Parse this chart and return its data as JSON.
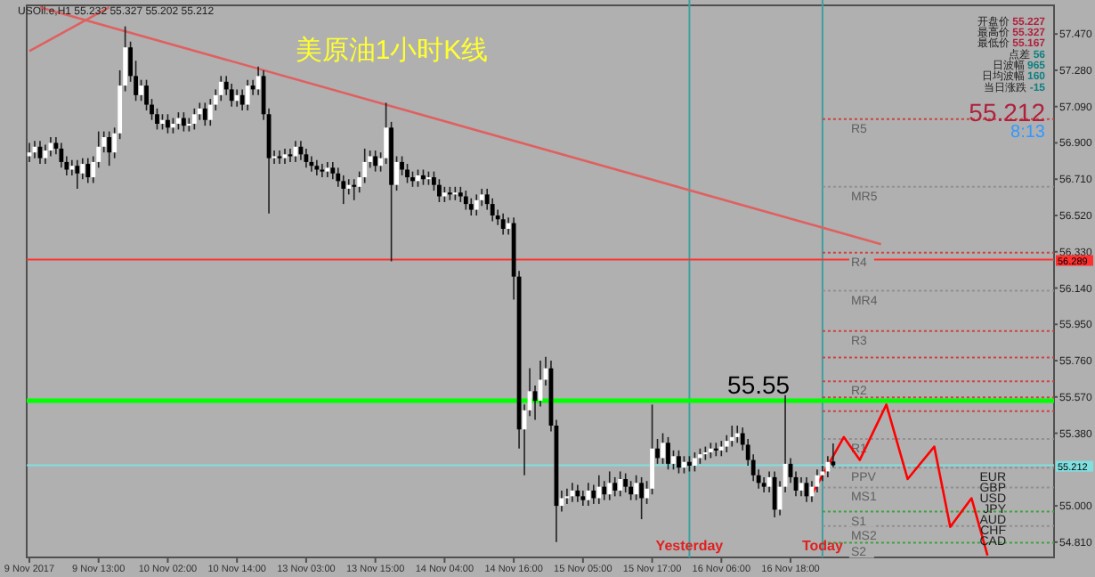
{
  "chart_data": {
    "type": "candlestick",
    "title": "美原油1小时K线",
    "categories": [
      "9 Nov 2017",
      null,
      null,
      null,
      null,
      null,
      null,
      null,
      null,
      null,
      null,
      null,
      null,
      "9 Nov 13:00",
      null,
      null,
      null,
      null,
      null,
      null,
      null,
      null,
      null,
      null,
      null,
      null,
      "10 Nov 02:00",
      null,
      null,
      null,
      null,
      null,
      null,
      null,
      null,
      null,
      null,
      null,
      null,
      "10 Nov 14:00",
      null,
      null,
      null,
      null,
      null,
      null,
      null,
      null,
      null,
      null,
      null,
      null,
      "13 Nov 03:00",
      null,
      null,
      null,
      null,
      null,
      null,
      null,
      null,
      null,
      null,
      null,
      null,
      "13 Nov 15:00",
      null,
      null,
      null,
      null,
      null,
      null,
      null,
      null,
      null,
      null,
      null,
      null,
      "14 Nov 04:00",
      null,
      null,
      null,
      null,
      null,
      null,
      null,
      null,
      null,
      null,
      null,
      null,
      "14 Nov 16:00",
      null,
      null,
      null,
      null,
      null,
      null,
      null,
      null,
      null,
      null,
      null,
      null,
      "15 Nov 05:00",
      null,
      null,
      null,
      null,
      null,
      null,
      null,
      null,
      null,
      null,
      null,
      null,
      "15 Nov 17:00",
      null,
      null,
      null,
      null,
      null,
      null,
      null,
      null,
      null,
      null,
      null,
      null,
      "16 Nov 06:00",
      null,
      null,
      null,
      null,
      null,
      null,
      null,
      null,
      null,
      null,
      null,
      null,
      "16 Nov 18:00",
      null,
      null,
      null,
      null,
      null,
      null,
      null,
      null,
      null,
      null,
      null,
      null,
      null,
      null,
      null,
      null,
      null,
      null,
      null,
      null,
      null,
      null,
      null,
      null,
      null,
      null,
      null,
      null,
      null,
      null,
      null,
      null,
      null,
      null,
      null,
      null,
      null,
      null,
      null,
      null,
      null,
      null,
      null,
      null,
      null,
      null,
      null,
      null,
      null
    ],
    "ohlc": [
      [
        56.83,
        56.9,
        56.8,
        56.85
      ],
      [
        56.85,
        56.91,
        56.82,
        56.88
      ],
      [
        56.88,
        56.91,
        56.79,
        56.82
      ],
      [
        56.82,
        56.89,
        56.79,
        56.86
      ],
      [
        56.86,
        56.93,
        56.83,
        56.9
      ],
      [
        56.9,
        56.93,
        56.84,
        56.87
      ],
      [
        56.87,
        56.9,
        56.77,
        56.8
      ],
      [
        56.8,
        56.83,
        56.73,
        56.76
      ],
      [
        56.76,
        56.81,
        56.73,
        56.78
      ],
      [
        56.78,
        56.81,
        56.66,
        56.74
      ],
      [
        56.74,
        56.82,
        56.71,
        56.79
      ],
      [
        56.79,
        56.82,
        56.69,
        56.72
      ],
      [
        56.72,
        56.83,
        56.69,
        56.8
      ],
      [
        56.8,
        56.96,
        56.77,
        56.88
      ],
      [
        56.88,
        56.96,
        56.85,
        56.93
      ],
      [
        56.93,
        56.96,
        56.78,
        56.85
      ],
      [
        56.85,
        56.98,
        56.82,
        56.95
      ],
      [
        56.95,
        57.28,
        56.92,
        57.2
      ],
      [
        57.2,
        57.51,
        57.17,
        57.4
      ],
      [
        57.4,
        57.43,
        57.22,
        57.25
      ],
      [
        57.25,
        57.33,
        57.12,
        57.15
      ],
      [
        57.15,
        57.23,
        57.12,
        57.2
      ],
      [
        57.2,
        57.23,
        57.07,
        57.1
      ],
      [
        57.1,
        57.13,
        57.02,
        57.05
      ],
      [
        57.05,
        57.08,
        56.97,
        57.0
      ],
      [
        57.0,
        57.05,
        56.97,
        57.02
      ],
      [
        57.02,
        57.05,
        56.95,
        56.98
      ],
      [
        56.98,
        57.03,
        56.95,
        57.0
      ],
      [
        57.0,
        57.06,
        56.97,
        57.03
      ],
      [
        57.03,
        57.06,
        56.96,
        56.99
      ],
      [
        56.99,
        57.03,
        56.96,
        57.0
      ],
      [
        57.0,
        57.08,
        56.97,
        57.05
      ],
      [
        57.05,
        57.11,
        57.02,
        57.08
      ],
      [
        57.08,
        57.11,
        56.99,
        57.02
      ],
      [
        57.02,
        57.13,
        56.99,
        57.1
      ],
      [
        57.1,
        57.18,
        57.07,
        57.15
      ],
      [
        57.15,
        57.25,
        57.12,
        57.22
      ],
      [
        57.22,
        57.25,
        57.15,
        57.18
      ],
      [
        57.18,
        57.21,
        57.09,
        57.12
      ],
      [
        57.12,
        57.18,
        57.09,
        57.15
      ],
      [
        57.15,
        57.18,
        57.07,
        57.1
      ],
      [
        57.1,
        57.23,
        57.07,
        57.2
      ],
      [
        57.2,
        57.23,
        57.15,
        57.18
      ],
      [
        57.18,
        57.3,
        57.15,
        57.25
      ],
      [
        57.25,
        57.28,
        57.02,
        57.05
      ],
      [
        57.05,
        57.08,
        56.53,
        56.82
      ],
      [
        56.82,
        56.86,
        56.79,
        56.83
      ],
      [
        56.83,
        56.86,
        56.79,
        56.82
      ],
      [
        56.82,
        56.87,
        56.79,
        56.84
      ],
      [
        56.84,
        56.87,
        56.8,
        56.83
      ],
      [
        56.83,
        56.91,
        56.8,
        56.88
      ],
      [
        56.88,
        56.91,
        56.81,
        56.84
      ],
      [
        56.84,
        56.87,
        56.77,
        56.8
      ],
      [
        56.8,
        56.83,
        56.75,
        56.78
      ],
      [
        56.78,
        56.81,
        56.73,
        56.76
      ],
      [
        56.76,
        56.79,
        56.72,
        56.75
      ],
      [
        56.75,
        56.8,
        56.72,
        56.77
      ],
      [
        56.77,
        56.8,
        56.71,
        56.74
      ],
      [
        56.74,
        56.77,
        56.67,
        56.7
      ],
      [
        56.7,
        56.73,
        56.58,
        56.66
      ],
      [
        56.66,
        56.71,
        56.63,
        56.68
      ],
      [
        56.68,
        56.71,
        56.6,
        56.67
      ],
      [
        56.67,
        56.75,
        56.64,
        56.72
      ],
      [
        56.72,
        56.87,
        56.69,
        56.8
      ],
      [
        56.8,
        56.86,
        56.77,
        56.83
      ],
      [
        56.83,
        56.86,
        56.75,
        56.78
      ],
      [
        56.78,
        56.85,
        56.75,
        56.82
      ],
      [
        56.82,
        57.11,
        56.79,
        56.98
      ],
      [
        56.98,
        57.01,
        56.28,
        56.68
      ],
      [
        56.68,
        56.83,
        56.65,
        56.8
      ],
      [
        56.8,
        56.83,
        56.73,
        56.76
      ],
      [
        56.76,
        56.79,
        56.69,
        56.72
      ],
      [
        56.72,
        56.75,
        56.67,
        56.7
      ],
      [
        56.7,
        56.76,
        56.67,
        56.73
      ],
      [
        56.73,
        56.76,
        56.68,
        56.71
      ],
      [
        56.71,
        56.75,
        56.68,
        56.72
      ],
      [
        56.72,
        56.75,
        56.65,
        56.68
      ],
      [
        56.68,
        56.71,
        56.59,
        56.62
      ],
      [
        56.62,
        56.67,
        56.59,
        56.64
      ],
      [
        56.64,
        56.67,
        56.6,
        56.63
      ],
      [
        56.63,
        56.67,
        56.6,
        56.64
      ],
      [
        56.64,
        56.67,
        56.59,
        56.62
      ],
      [
        56.62,
        56.65,
        56.55,
        56.58
      ],
      [
        56.58,
        56.61,
        56.52,
        56.55
      ],
      [
        56.55,
        56.63,
        56.52,
        56.6
      ],
      [
        56.6,
        56.66,
        56.57,
        56.63
      ],
      [
        56.63,
        56.66,
        56.55,
        56.58
      ],
      [
        56.58,
        56.61,
        56.49,
        56.52
      ],
      [
        56.52,
        56.55,
        56.47,
        56.5
      ],
      [
        56.5,
        56.53,
        56.42,
        56.45
      ],
      [
        56.45,
        56.51,
        56.42,
        56.48
      ],
      [
        56.48,
        56.51,
        56.08,
        56.2
      ],
      [
        56.2,
        56.23,
        55.3,
        55.4
      ],
      [
        55.4,
        55.53,
        55.16,
        55.5
      ],
      [
        55.5,
        55.72,
        55.47,
        55.6
      ],
      [
        55.6,
        55.63,
        55.45,
        55.55
      ],
      [
        55.55,
        55.76,
        55.52,
        55.66
      ],
      [
        55.66,
        55.78,
        55.63,
        55.72
      ],
      [
        55.72,
        55.76,
        55.39,
        55.42
      ],
      [
        55.42,
        55.45,
        54.81,
        55.0
      ],
      [
        55.0,
        55.08,
        54.97,
        55.04
      ],
      [
        55.04,
        55.09,
        55.01,
        55.05
      ],
      [
        55.05,
        55.12,
        55.02,
        55.08
      ],
      [
        55.08,
        55.11,
        55.02,
        55.05
      ],
      [
        55.05,
        55.08,
        55.0,
        55.03
      ],
      [
        55.03,
        55.12,
        55.0,
        55.08
      ],
      [
        55.08,
        55.11,
        55.01,
        55.04
      ],
      [
        55.04,
        55.16,
        55.01,
        55.1
      ],
      [
        55.1,
        55.13,
        55.03,
        55.06
      ],
      [
        55.06,
        55.18,
        55.03,
        55.12
      ],
      [
        55.12,
        55.15,
        55.05,
        55.08
      ],
      [
        55.08,
        55.18,
        55.05,
        55.14
      ],
      [
        55.14,
        55.17,
        55.07,
        55.1
      ],
      [
        55.1,
        55.13,
        55.03,
        55.06
      ],
      [
        55.06,
        55.16,
        55.03,
        55.12
      ],
      [
        55.12,
        55.15,
        54.93,
        55.04
      ],
      [
        55.04,
        55.13,
        55.01,
        55.09
      ],
      [
        55.09,
        55.53,
        55.06,
        55.3
      ],
      [
        55.3,
        55.35,
        55.22,
        55.25
      ],
      [
        55.25,
        55.38,
        55.22,
        55.33
      ],
      [
        55.33,
        55.36,
        55.19,
        55.22
      ],
      [
        55.22,
        55.29,
        55.19,
        55.26
      ],
      [
        55.26,
        55.29,
        55.17,
        55.2
      ],
      [
        55.2,
        55.26,
        55.17,
        55.23
      ],
      [
        55.23,
        55.26,
        55.18,
        55.21
      ],
      [
        55.21,
        55.28,
        55.18,
        55.25
      ],
      [
        55.25,
        55.3,
        55.22,
        55.27
      ],
      [
        55.27,
        55.31,
        55.24,
        55.28
      ],
      [
        55.28,
        55.33,
        55.25,
        55.3
      ],
      [
        55.3,
        55.33,
        55.26,
        55.29
      ],
      [
        55.29,
        55.34,
        55.26,
        55.31
      ],
      [
        55.31,
        55.37,
        55.28,
        55.34
      ],
      [
        55.34,
        55.42,
        55.31,
        55.36
      ],
      [
        55.36,
        55.42,
        55.33,
        55.38
      ],
      [
        55.38,
        55.41,
        55.29,
        55.32
      ],
      [
        55.32,
        55.35,
        55.21,
        55.24
      ],
      [
        55.24,
        55.27,
        55.13,
        55.16
      ],
      [
        55.16,
        55.19,
        55.09,
        55.12
      ],
      [
        55.12,
        55.15,
        55.07,
        55.1
      ],
      [
        55.1,
        55.18,
        55.07,
        55.15
      ],
      [
        55.15,
        55.18,
        54.94,
        54.98
      ],
      [
        54.98,
        55.13,
        54.95,
        55.1
      ],
      [
        55.1,
        55.58,
        55.07,
        55.22
      ],
      [
        55.22,
        55.25,
        55.12,
        55.15
      ],
      [
        55.15,
        55.18,
        55.05,
        55.08
      ],
      [
        55.08,
        55.15,
        55.05,
        55.12
      ],
      [
        55.12,
        55.15,
        55.02,
        55.05
      ],
      [
        55.05,
        55.13,
        55.02,
        55.1
      ],
      [
        55.1,
        55.19,
        55.07,
        55.16
      ],
      [
        55.16,
        55.21,
        55.13,
        55.18
      ],
      [
        55.18,
        55.26,
        55.15,
        55.23
      ],
      [
        55.232,
        55.327,
        55.202,
        55.212
      ],
      null,
      null,
      null,
      null,
      null,
      null,
      null,
      null,
      null,
      null,
      null,
      null,
      null,
      null,
      null,
      null,
      null,
      null,
      null,
      null,
      null,
      null,
      null,
      null,
      null,
      null,
      null,
      null,
      null,
      null,
      null,
      null,
      null,
      null,
      null,
      null,
      null,
      null,
      null,
      null,
      null
    ],
    "series": [
      {
        "type": "line",
        "color": "#e06060",
        "values": [
          null,
          null,
          57.61,
          null,
          null,
          null,
          null,
          null,
          null,
          null,
          null,
          null,
          null,
          null,
          null,
          null,
          null,
          null,
          null,
          null,
          null,
          null,
          null,
          null,
          null,
          null,
          null,
          null,
          null,
          null,
          null,
          null,
          null,
          null,
          null,
          null,
          null,
          null,
          null,
          null,
          null,
          null,
          null,
          null,
          null,
          null,
          null,
          null,
          null,
          null,
          null,
          null,
          null,
          null,
          null,
          null,
          null,
          null,
          null,
          null,
          null,
          null,
          null,
          null,
          null,
          null,
          null,
          null,
          null,
          null,
          null,
          null,
          null,
          null,
          null,
          null,
          null,
          null,
          null,
          null,
          null,
          null,
          null,
          null,
          null,
          null,
          null,
          null,
          null,
          null,
          null,
          null,
          null,
          null,
          null,
          null,
          null,
          null,
          null,
          null,
          null,
          null,
          null,
          null,
          null,
          null,
          null,
          null,
          null,
          null,
          null,
          null,
          null,
          null,
          null,
          null,
          null,
          null,
          null,
          null,
          null,
          null,
          null,
          null,
          null,
          null,
          null,
          null,
          null,
          null,
          null,
          null,
          null,
          null,
          null,
          null,
          null,
          null,
          null,
          null,
          null,
          null,
          null,
          null,
          null,
          null,
          null,
          null,
          null,
          null,
          null,
          null,
          null,
          null,
          null,
          null,
          null,
          null,
          null,
          null,
          56.37,
          null,
          null,
          null,
          null,
          null,
          null,
          null,
          null,
          null,
          null,
          null,
          null,
          null,
          null,
          null,
          null,
          null,
          null,
          null,
          null,
          null,
          null,
          null,
          null,
          null,
          null,
          null,
          null,
          null,
          null,
          null,
          null
        ]
      },
      {
        "type": "line",
        "color": "#e06060",
        "values": [
          57.38,
          null,
          null,
          null,
          null,
          null,
          null,
          null,
          null,
          null,
          null,
          null,
          null,
          null,
          null,
          57.61,
          null,
          null,
          null,
          null,
          null,
          null,
          null,
          null,
          null,
          null,
          null,
          null,
          null,
          null,
          null,
          null,
          null,
          null,
          null,
          null,
          null,
          null,
          null,
          null,
          null,
          null,
          null,
          null,
          null,
          null,
          null,
          null,
          null,
          null,
          null,
          null,
          null,
          null,
          null,
          null,
          null,
          null,
          null,
          null,
          null,
          null,
          null,
          null,
          null,
          null,
          null,
          null,
          null,
          null,
          null,
          null,
          null,
          null,
          null,
          null,
          null,
          null,
          null,
          null,
          null,
          null,
          null,
          null,
          null,
          null,
          null,
          null,
          null,
          null,
          null,
          null,
          null,
          null,
          null,
          null,
          null,
          null,
          null,
          null,
          null,
          null,
          null,
          null,
          null,
          null,
          null,
          null,
          null,
          null,
          null,
          null,
          null,
          null,
          null,
          null,
          null,
          null,
          null,
          null,
          null,
          null,
          null,
          null,
          null,
          null,
          null,
          null,
          null,
          null,
          null,
          null,
          null,
          null,
          null,
          null,
          null,
          null,
          null,
          null,
          null,
          null,
          null,
          null,
          null,
          null,
          null,
          null,
          null,
          null,
          null,
          null,
          null,
          null,
          null,
          null,
          null,
          null,
          null,
          null,
          null,
          null,
          null,
          null,
          null,
          null,
          null,
          null,
          null,
          null,
          null,
          null,
          null,
          null,
          null,
          null,
          null,
          null,
          null,
          null,
          null,
          null,
          null,
          null,
          null,
          null,
          null,
          null,
          null,
          null,
          null,
          null,
          null
        ]
      },
      {
        "type": "line",
        "color": "#ff0000",
        "values": [
          null,
          null,
          null,
          null,
          null,
          null,
          null,
          null,
          null,
          null,
          null,
          null,
          null,
          null,
          null,
          null,
          null,
          null,
          null,
          null,
          null,
          null,
          null,
          null,
          null,
          null,
          null,
          null,
          null,
          null,
          null,
          null,
          null,
          null,
          null,
          null,
          null,
          null,
          null,
          null,
          null,
          null,
          null,
          null,
          null,
          null,
          null,
          null,
          null,
          null,
          null,
          null,
          null,
          null,
          null,
          null,
          null,
          null,
          null,
          null,
          null,
          null,
          null,
          null,
          null,
          null,
          null,
          null,
          null,
          null,
          null,
          null,
          null,
          null,
          null,
          null,
          null,
          null,
          null,
          null,
          null,
          null,
          null,
          null,
          null,
          null,
          null,
          null,
          null,
          null,
          null,
          null,
          null,
          null,
          null,
          null,
          null,
          null,
          null,
          null,
          null,
          null,
          null,
          null,
          null,
          null,
          null,
          null,
          null,
          null,
          null,
          null,
          null,
          null,
          null,
          null,
          null,
          null,
          null,
          null,
          null,
          null,
          null,
          null,
          null,
          null,
          null,
          null,
          null,
          null,
          null,
          null,
          null,
          null,
          null,
          null,
          null,
          null,
          null,
          null,
          null,
          null,
          null,
          null,
          null,
          null,
          null,
          55.06,
          null,
          null,
          null,
          null,
          null,
          55.36,
          null,
          null,
          55.24,
          null,
          null,
          null,
          null,
          55.53,
          null,
          null,
          null,
          55.14,
          null,
          null,
          null,
          null,
          55.31,
          null,
          null,
          54.89,
          null,
          null,
          null,
          55.04,
          null,
          null,
          54.74,
          null,
          null,
          null,
          null,
          null,
          null,
          null,
          null,
          null,
          null,
          null,
          null
        ]
      }
    ],
    "ylim": [
      54.73,
      57.62
    ],
    "yticks": [
      {
        "value": 57.47,
        "label": "57.470"
      },
      {
        "value": 57.28,
        "label": "57.280"
      },
      {
        "value": 57.09,
        "label": "57.090"
      },
      {
        "value": 56.9,
        "label": "56.900"
      },
      {
        "value": 56.71,
        "label": "56.710"
      },
      {
        "value": 56.52,
        "label": "56.520"
      },
      {
        "value": 56.33,
        "label": "56.330"
      },
      {
        "value": 56.14,
        "label": "56.140"
      },
      {
        "value": 55.95,
        "label": "55.950"
      },
      {
        "value": 55.76,
        "label": "55.760"
      },
      {
        "value": 55.57,
        "label": "55.570"
      },
      {
        "value": 55.38,
        "label": "55.380"
      },
      {
        "value": 55.0,
        "label": "55.000"
      },
      {
        "value": 54.81,
        "label": "54.810"
      }
    ],
    "ref_lines": [
      {
        "axis": "y",
        "value": 56.289,
        "label": "56.289",
        "color": "#ff3030",
        "line_style": "solid"
      },
      {
        "axis": "y",
        "value": 55.55,
        "color": "#00ff00",
        "line_style": "solid"
      },
      {
        "axis": "y",
        "value": 55.212,
        "label": "55.212",
        "color": "#80e0e0",
        "line_style": "solid"
      },
      {
        "axis": "y",
        "value": 57.025,
        "label": "R5",
        "color": "#d04040",
        "line_style": "dotted"
      },
      {
        "axis": "y",
        "value": 56.67,
        "label": "MR5",
        "color": "#909090",
        "line_style": "dotted"
      },
      {
        "axis": "y",
        "value": 56.325,
        "label": "R4",
        "color": "#d04040",
        "line_style": "dotted"
      },
      {
        "axis": "y",
        "value": 56.126,
        "label": "MR4",
        "color": "#909090",
        "line_style": "dotted"
      },
      {
        "axis": "y",
        "value": 55.915,
        "label": "R3",
        "color": "#d04040",
        "line_style": "dotted"
      },
      {
        "axis": "y",
        "value": 55.776,
        "color": "#d04040",
        "line_style": "dotted"
      },
      {
        "axis": "y",
        "value": 55.652,
        "label": "R2",
        "color": "#d04040",
        "line_style": "dotted"
      },
      {
        "axis": "y",
        "value": 55.568,
        "color": "#d04040",
        "line_style": "dotted"
      },
      {
        "axis": "y",
        "value": 55.496,
        "color": "#d04040",
        "line_style": "dotted"
      },
      {
        "axis": "y",
        "value": 55.35,
        "label": "R1",
        "color": "#909090",
        "line_style": "dotted"
      },
      {
        "axis": "y",
        "value": 55.2,
        "label": "PPV",
        "color": "#909090",
        "line_style": "dotted"
      },
      {
        "axis": "y",
        "value": 55.096,
        "label": "MS1",
        "color": "#909090",
        "line_style": "dotted"
      },
      {
        "axis": "y",
        "value": 54.97,
        "label": "S1",
        "color": "#40a040",
        "line_style": "dotted"
      },
      {
        "axis": "y",
        "value": 54.894,
        "label": "MS2",
        "color": "#909090",
        "line_style": "dotted"
      },
      {
        "axis": "y",
        "value": 54.807,
        "label": "S2",
        "color": "#40a040",
        "line_style": "dotted"
      }
    ],
    "annotations": [
      "USOil.e,H1 55.232 55.327 55.202 55.212",
      {
        "text": "55.55",
        "y": 55.55
      },
      "开盘价 55.227",
      "最高价 55.327",
      "最低价 55.167",
      "点差 56",
      "日波幅 965",
      "日均波幅 160",
      "当日涨跌 -15",
      "55.212",
      "8:13",
      "EUR",
      "GBP",
      "USD",
      "JPY",
      "AUD",
      "CHF",
      "CAD",
      "Yesterday",
      "Today"
    ]
  }
}
